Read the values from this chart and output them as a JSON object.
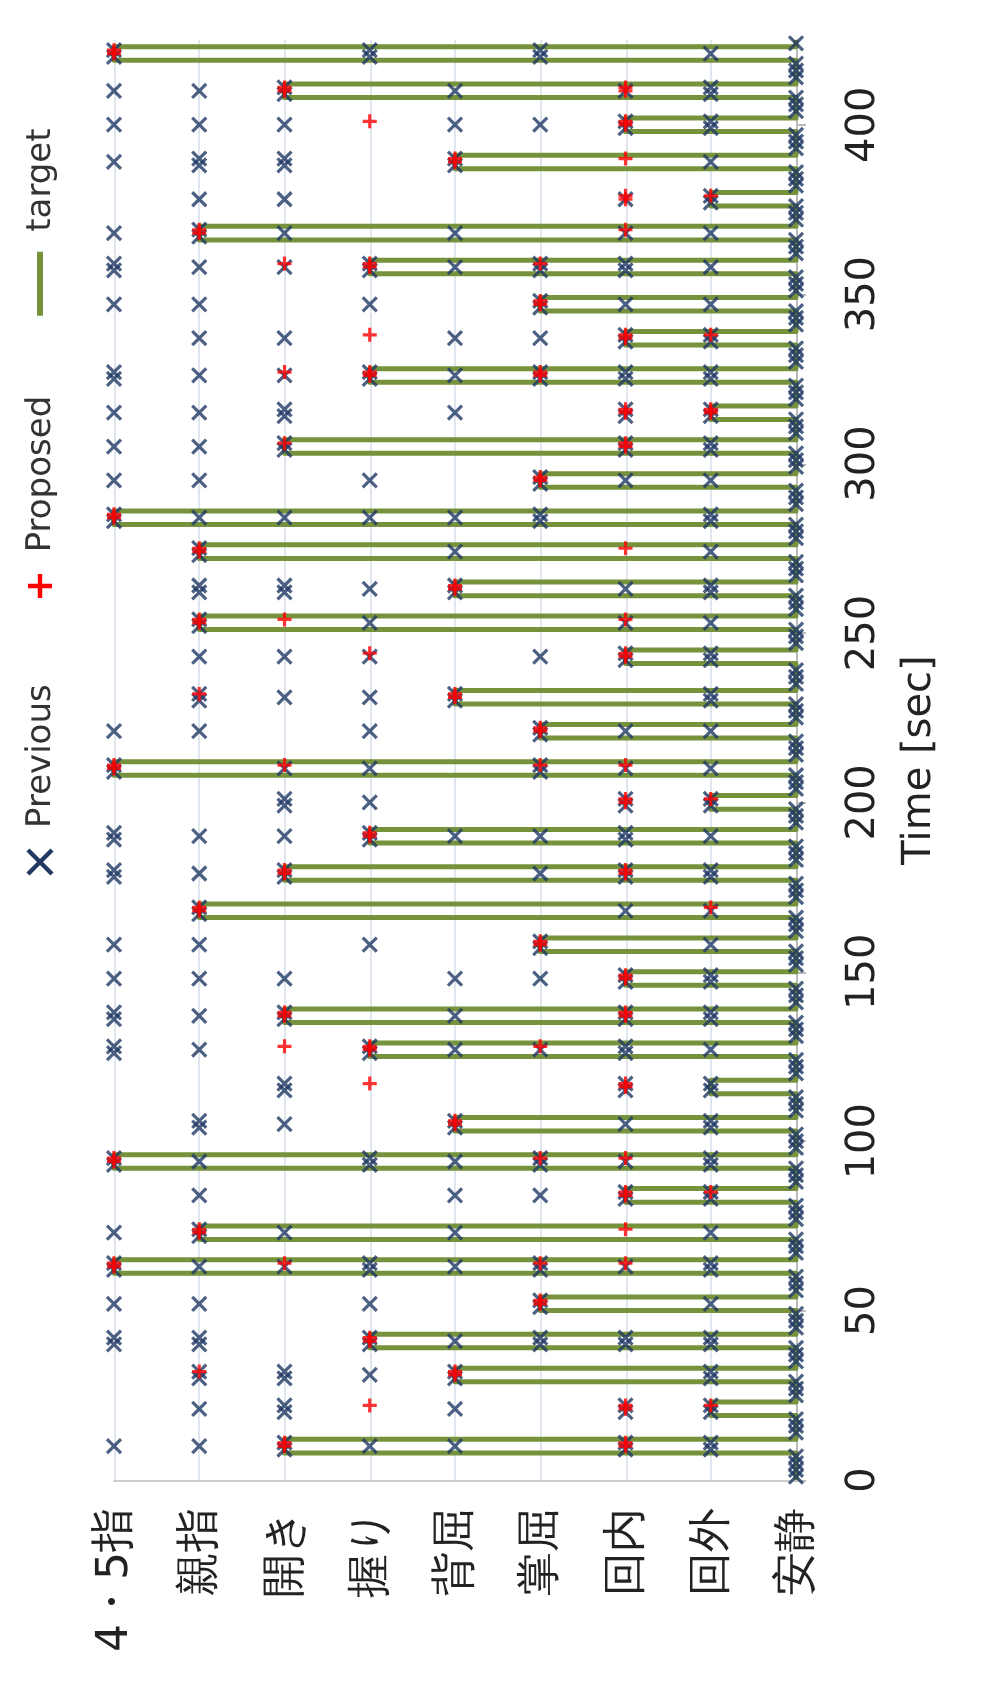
{
  "chart_data": {
    "type": "scatter",
    "ylabel": "Time [sec]",
    "categories": [
      "4・5指",
      "親指",
      "開き",
      "握り",
      "背屈",
      "掌屈",
      "回内",
      "回外",
      "安静"
    ],
    "ylim": [
      0,
      425
    ],
    "yticks": [
      0,
      50,
      100,
      150,
      200,
      250,
      300,
      350,
      400
    ],
    "grid": "x",
    "legend": "left",
    "series": [
      {
        "name": "Previous",
        "marker": "cross",
        "color": "#1f3864",
        "values": [
          1,
          3,
          5,
          7,
          9,
          11,
          9,
          11,
          9,
          11,
          10,
          10,
          10,
          10,
          14,
          16,
          18,
          20,
          22,
          20,
          22,
          20,
          22,
          21,
          21,
          25,
          27,
          29,
          30,
          32,
          30,
          32,
          30,
          32,
          30,
          32,
          31,
          35,
          37,
          39,
          40,
          42,
          40,
          42,
          40,
          42,
          40,
          42,
          40,
          42,
          40,
          42,
          41,
          45,
          47,
          49,
          51,
          53,
          52,
          52,
          52,
          52,
          56,
          58,
          60,
          62,
          64,
          62,
          64,
          62,
          64,
          62,
          64,
          63,
          63,
          63,
          63,
          67,
          69,
          71,
          72,
          74,
          73,
          73,
          73,
          73,
          77,
          79,
          81,
          83,
          85,
          83,
          85,
          84,
          84,
          84,
          88,
          90,
          92,
          93,
          95,
          93,
          95,
          93,
          95,
          93,
          95,
          94,
          94,
          94,
          98,
          100,
          102,
          104,
          106,
          104,
          106,
          104,
          106,
          105,
          105,
          109,
          111,
          113,
          115,
          117,
          115,
          117,
          115,
          117,
          120,
          122,
          124,
          126,
          128,
          126,
          128,
          126,
          128,
          127,
          127,
          127,
          127,
          131,
          133,
          135,
          136,
          138,
          136,
          138,
          136,
          138,
          136,
          138,
          137,
          137,
          141,
          143,
          145,
          147,
          149,
          147,
          149,
          148,
          148,
          148,
          148,
          148,
          152,
          154,
          156,
          157,
          159,
          158,
          158,
          158,
          158,
          162,
          164,
          166,
          167,
          169,
          168,
          168,
          172,
          174,
          176,
          178,
          180,
          178,
          180,
          178,
          180,
          178,
          180,
          179,
          179,
          183,
          185,
          187,
          189,
          191,
          189,
          191,
          189,
          191,
          190,
          190,
          190,
          190,
          190,
          194,
          196,
          198,
          199,
          201,
          199,
          201,
          199,
          201,
          200,
          204,
          206,
          208,
          209,
          211,
          209,
          211,
          210,
          210,
          210,
          210,
          214,
          216,
          218,
          220,
          222,
          221,
          221,
          221,
          221,
          221,
          225,
          227,
          229,
          230,
          232,
          230,
          232,
          230,
          232,
          231,
          231,
          235,
          237,
          239,
          242,
          244,
          242,
          244,
          243,
          243,
          243,
          243,
          247,
          249,
          251,
          252,
          254,
          253,
          253,
          253,
          257,
          259,
          261,
          262,
          264,
          262,
          264,
          262,
          264,
          262,
          264,
          263,
          263,
          267,
          269,
          271,
          273,
          275,
          274,
          274,
          278,
          280,
          282,
          283,
          285,
          283,
          285,
          283,
          285,
          284,
          284,
          284,
          284,
          288,
          290,
          292,
          294,
          296,
          295,
          295,
          295,
          295,
          295,
          299,
          301,
          303,
          304,
          306,
          304,
          306,
          304,
          306,
          305,
          305,
          309,
          311,
          313,
          314,
          316,
          314,
          316,
          314,
          316,
          315,
          315,
          315,
          319,
          321,
          323,
          325,
          327,
          325,
          327,
          325,
          327,
          325,
          327,
          325,
          327,
          326,
          326,
          326,
          330,
          332,
          334,
          336,
          338,
          336,
          338,
          337,
          337,
          337,
          337,
          341,
          343,
          345,
          346,
          348,
          347,
          347,
          347,
          347,
          347,
          351,
          353,
          355,
          357,
          359,
          357,
          359,
          357,
          359,
          357,
          359,
          358,
          358,
          358,
          358,
          362,
          364,
          366,
          367,
          369,
          368,
          368,
          368,
          368,
          368,
          372,
          374,
          376,
          377,
          379,
          378,
          378,
          378,
          382,
          384,
          386,
          388,
          390,
          388,
          390,
          388,
          390,
          389,
          389,
          393,
          395,
          397,
          399,
          401,
          399,
          401,
          400,
          400,
          400,
          400,
          400,
          404,
          406,
          408,
          409,
          411,
          409,
          411,
          410,
          410,
          410,
          410,
          414,
          416,
          418,
          420,
          422,
          420,
          422,
          420,
          422,
          421,
          424
        ],
        "x": [
          "安静",
          "安静",
          "安静",
          "安静",
          "開き",
          "開き",
          "回内",
          "回内",
          "回外",
          "回外",
          "4・5指",
          "親指",
          "握り",
          "背屈",
          "安静",
          "安静",
          "安静",
          "開き",
          "開き",
          "回内",
          "回内",
          "回外",
          "回外",
          "親指",
          "背屈",
          "安静",
          "安静",
          "安静",
          "親指",
          "親指",
          "開き",
          "開き",
          "背屈",
          "背屈",
          "回外",
          "回外",
          "握り",
          "安静",
          "安静",
          "安静",
          "4・5指",
          "4・5指",
          "親指",
          "親指",
          "握り",
          "握り",
          "掌屈",
          "掌屈",
          "回内",
          "回内",
          "回外",
          "回外",
          "背屈",
          "安静",
          "安静",
          "安静",
          "掌屈",
          "掌屈",
          "4・5指",
          "親指",
          "握り",
          "回外",
          "安静",
          "安静",
          "安静",
          "4・5指",
          "4・5指",
          "握り",
          "握り",
          "掌屈",
          "掌屈",
          "回外",
          "回外",
          "親指",
          "開き",
          "背屈",
          "回内",
          "安静",
          "安静",
          "安静",
          "親指",
          "親指",
          "4・5指",
          "開き",
          "背屈",
          "回外",
          "安静",
          "安静",
          "安静",
          "回内",
          "回内",
          "回外",
          "回外",
          "親指",
          "背屈",
          "掌屈",
          "安静",
          "安静",
          "安静",
          "4・5指",
          "4・5指",
          "握り",
          "握り",
          "掌屈",
          "掌屈",
          "回外",
          "回外",
          "親指",
          "背屈",
          "回内",
          "安静",
          "安静",
          "安静",
          "親指",
          "親指",
          "背屈",
          "背屈",
          "回外",
          "回外",
          "開き",
          "回内",
          "安静",
          "安静",
          "安静",
          "開き",
          "開き",
          "回内",
          "回内",
          "回外",
          "回外",
          "安静",
          "安静",
          "安静",
          "4・5指",
          "4・5指",
          "握り",
          "握り",
          "回内",
          "回内",
          "親指",
          "背屈",
          "掌屈",
          "回外",
          "安静",
          "安静",
          "安静",
          "4・5指",
          "4・5指",
          "開き",
          "開き",
          "回内",
          "回内",
          "回外",
          "回外",
          "親指",
          "背屈",
          "安静",
          "安静",
          "安静",
          "回内",
          "回内",
          "回外",
          "回外",
          "4・5指",
          "親指",
          "開き",
          "背屈",
          "掌屈",
          "安静",
          "安静",
          "安静",
          "掌屈",
          "掌屈",
          "4・5指",
          "親指",
          "握り",
          "回外",
          "安静",
          "安静",
          "安静",
          "親指",
          "親指",
          "回内",
          "回外",
          "安静",
          "安静",
          "安静",
          "4・5指",
          "4・5指",
          "開き",
          "開き",
          "回内",
          "回内",
          "回外",
          "回外",
          "親指",
          "掌屈",
          "安静",
          "安静",
          "安静",
          "4・5指",
          "4・5指",
          "握り",
          "握り",
          "回内",
          "回内",
          "親指",
          "開き",
          "背屈",
          "掌屈",
          "回外",
          "安静",
          "安静",
          "安静",
          "開き",
          "開き",
          "回内",
          "回内",
          "回外",
          "回外",
          "握り",
          "安静",
          "安静",
          "安静",
          "4・5指",
          "4・5指",
          "掌屈",
          "掌屈",
          "開き",
          "握り",
          "回内",
          "回外",
          "安静",
          "安静",
          "安静",
          "掌屈",
          "掌屈",
          "4・5指",
          "親指",
          "握り",
          "回内",
          "回外",
          "安静",
          "安静",
          "安静",
          "親指",
          "親指",
          "背屈",
          "背屈",
          "回外",
          "回外",
          "開き",
          "握り",
          "安静",
          "安静",
          "安静",
          "回内",
          "回内",
          "回外",
          "回外",
          "親指",
          "開き",
          "握り",
          "掌屈",
          "安静",
          "安静",
          "安静",
          "親指",
          "親指",
          "握り",
          "回内",
          "回外",
          "安静",
          "安静",
          "安静",
          "親指",
          "親指",
          "開き",
          "開き",
          "背屈",
          "背屈",
          "回外",
          "回外",
          "握り",
          "回内",
          "安静",
          "安静",
          "安静",
          "親指",
          "親指",
          "背屈",
          "回外",
          "安静",
          "安静",
          "安静",
          "4・5指",
          "4・5指",
          "掌屈",
          "掌屈",
          "回外",
          "回外",
          "親指",
          "開き",
          "握り",
          "背屈",
          "安静",
          "安静",
          "安静",
          "掌屈",
          "掌屈",
          "4・5指",
          "親指",
          "握り",
          "回内",
          "回外",
          "安静",
          "安静",
          "安静",
          "開き",
          "開き",
          "回内",
          "回内",
          "回外",
          "回外",
          "4・5指",
          "親指",
          "安静",
          "安静",
          "安静",
          "開き",
          "開き",
          "回内",
          "回内",
          "回外",
          "回外",
          "4・5指",
          "親指",
          "背屈",
          "安静",
          "安静",
          "安静",
          "4・5指",
          "4・5指",
          "握り",
          "握り",
          "掌屈",
          "掌屈",
          "回内",
          "回内",
          "回外",
          "回外",
          "親指",
          "開き",
          "背屈",
          "安静",
          "安静",
          "安静",
          "回内",
          "回内",
          "回外",
          "回外",
          "親指",
          "開き",
          "背屈",
          "掌屈",
          "安静",
          "安静",
          "安静",
          "掌屈",
          "掌屈",
          "4・5指",
          "親指",
          "握り",
          "回内",
          "回外",
          "安静",
          "安静",
          "安静",
          "4・5指",
          "4・5指",
          "握り",
          "握り",
          "掌屈",
          "掌屈",
          "回内",
          "回内",
          "親指",
          "開き",
          "背屈",
          "回外",
          "安静",
          "安静",
          "安静",
          "親指",
          "親指",
          "4・5指",
          "開き",
          "背屈",
          "回内",
          "回外",
          "安静",
          "安静",
          "安静",
          "回外",
          "回外",
          "親指",
          "開き",
          "回内",
          "安静",
          "安静",
          "安静",
          "親指",
          "親指",
          "開き",
          "開き",
          "背屈",
          "背屈",
          "4・5指",
          "回外",
          "安静",
          "安静",
          "安静",
          "回内",
          "回内",
          "回外",
          "回外",
          "4・5指",
          "親指",
          "開き",
          "背屈",
          "掌屈",
          "安静",
          "安静",
          "安静",
          "開き",
          "開き",
          "回外",
          "回外",
          "4・5指",
          "親指",
          "背屈",
          "回内",
          "安静",
          "安静",
          "安静",
          "4・5指",
          "4・5指",
          "握り",
          "握り",
          "掌屈",
          "掌屈",
          "回外",
          "安静"
        ]
      },
      {
        "name": "Proposed",
        "marker": "plus",
        "color": "#ff0000",
        "values": [
          10,
          11,
          10,
          11,
          22,
          21,
          22,
          22,
          32,
          31,
          32,
          41,
          42,
          52,
          53,
          63,
          64,
          64,
          64,
          64,
          73,
          74,
          74,
          84,
          85,
          85,
          94,
          95,
          95,
          95,
          105,
          106,
          117,
          116,
          117,
          128,
          127,
          128,
          128,
          137,
          138,
          137,
          138,
          148,
          149,
          158,
          159,
          168,
          169,
          169,
          179,
          180,
          179,
          180,
          190,
          191,
          200,
          201,
          201,
          210,
          211,
          211,
          211,
          211,
          221,
          222,
          232,
          231,
          232,
          244,
          243,
          244,
          253,
          254,
          254,
          254,
          263,
          264,
          274,
          275,
          275,
          284,
          285,
          295,
          296,
          306,
          305,
          306,
          315,
          316,
          315,
          316,
          327,
          326,
          327,
          326,
          327,
          338,
          337,
          338,
          338,
          347,
          348,
          359,
          358,
          359,
          359,
          368,
          369,
          369,
          378,
          379,
          379,
          389,
          390,
          390,
          401,
          400,
          401,
          410,
          411,
          410,
          411,
          421,
          422
        ],
        "x": [
          "開き",
          "開き",
          "回内",
          "回内",
          "握り",
          "回内",
          "回内",
          "回外",
          "親指",
          "背屈",
          "背屈",
          "握り",
          "握り",
          "掌屈",
          "掌屈",
          "4・5指",
          "4・5指",
          "開き",
          "掌屈",
          "回内",
          "親指",
          "親指",
          "回内",
          "回内",
          "回内",
          "回外",
          "4・5指",
          "4・5指",
          "掌屈",
          "回内",
          "背屈",
          "背屈",
          "握り",
          "回内",
          "回内",
          "開き",
          "握り",
          "握り",
          "掌屈",
          "開き",
          "開き",
          "回内",
          "回内",
          "回内",
          "回内",
          "掌屈",
          "掌屈",
          "親指",
          "親指",
          "回外",
          "開き",
          "開き",
          "回内",
          "回内",
          "握り",
          "握り",
          "回内",
          "回内",
          "回外",
          "4・5指",
          "4・5指",
          "開き",
          "掌屈",
          "回内",
          "掌屈",
          "掌屈",
          "親指",
          "背屈",
          "背屈",
          "握り",
          "回内",
          "回内",
          "親指",
          "親指",
          "開き",
          "回内",
          "背屈",
          "背屈",
          "親指",
          "親指",
          "回内",
          "4・5指",
          "4・5指",
          "掌屈",
          "掌屈",
          "開き",
          "回内",
          "回内",
          "回内",
          "回内",
          "回外",
          "回外",
          "開き",
          "握り",
          "握り",
          "掌屈",
          "掌屈",
          "握り",
          "回内",
          "回内",
          "回外",
          "掌屈",
          "掌屈",
          "開き",
          "握り",
          "握り",
          "掌屈",
          "親指",
          "親指",
          "回内",
          "回内",
          "回内",
          "回外",
          "背屈",
          "背屈",
          "回内",
          "握り",
          "回内",
          "回内",
          "開き",
          "開き",
          "回内",
          "回内",
          "4・5指",
          "4・5指"
        ]
      },
      {
        "name": "target",
        "type": "line",
        "marker": "none",
        "color": "#76923c",
        "values": [
          0,
          8,
          8,
          12,
          12,
          19,
          19,
          23,
          23,
          29,
          29,
          33,
          33,
          39,
          39,
          43,
          43,
          50,
          50,
          54,
          54,
          61,
          61,
          65,
          65,
          71,
          71,
          75,
          75,
          82,
          82,
          86,
          86,
          92,
          92,
          96,
          96,
          103,
          103,
          107,
          107,
          114,
          114,
          118,
          118,
          125,
          125,
          129,
          129,
          135,
          135,
          139,
          139,
          146,
          146,
          150,
          150,
          156,
          156,
          160,
          160,
          166,
          166,
          170,
          170,
          177,
          177,
          181,
          181,
          188,
          188,
          192,
          192,
          198,
          198,
          202,
          202,
          208,
          208,
          212,
          212,
          219,
          219,
          223,
          223,
          229,
          229,
          233,
          233,
          241,
          241,
          245,
          245,
          251,
          251,
          255,
          255,
          261,
          261,
          265,
          265,
          272,
          272,
          276,
          276,
          282,
          282,
          286,
          286,
          293,
          293,
          297,
          297,
          303,
          303,
          307,
          307,
          313,
          313,
          317,
          317,
          324,
          324,
          328,
          328,
          335,
          335,
          339,
          339,
          345,
          345,
          349,
          349,
          356,
          356,
          360,
          360,
          366,
          366,
          370,
          370,
          376,
          376,
          380,
          380,
          387,
          387,
          391,
          391,
          398,
          398,
          402,
          402,
          408,
          408,
          412,
          412,
          419,
          419,
          423,
          423,
          425
        ],
        "x": [
          "安静",
          "安静",
          "開き",
          "開き",
          "安静",
          "安静",
          "回外",
          "回外",
          "安静",
          "安静",
          "背屈",
          "背屈",
          "安静",
          "安静",
          "握り",
          "握り",
          "安静",
          "安静",
          "掌屈",
          "掌屈",
          "安静",
          "安静",
          "4・5指",
          "4・5指",
          "安静",
          "安静",
          "親指",
          "親指",
          "安静",
          "安静",
          "回内",
          "回内",
          "安静",
          "安静",
          "4・5指",
          "4・5指",
          "安静",
          "安静",
          "背屈",
          "背屈",
          "安静",
          "安静",
          "回外",
          "回外",
          "安静",
          "安静",
          "握り",
          "握り",
          "安静",
          "安静",
          "開き",
          "開き",
          "安静",
          "安静",
          "回内",
          "回内",
          "安静",
          "安静",
          "掌屈",
          "掌屈",
          "安静",
          "安静",
          "親指",
          "親指",
          "安静",
          "安静",
          "開き",
          "開き",
          "安静",
          "安静",
          "握り",
          "握り",
          "安静",
          "安静",
          "回外",
          "回外",
          "安静",
          "安静",
          "4・5指",
          "4・5指",
          "安静",
          "安静",
          "掌屈",
          "掌屈",
          "安静",
          "安静",
          "背屈",
          "背屈",
          "安静",
          "安静",
          "回内",
          "回内",
          "安静",
          "安静",
          "親指",
          "親指",
          "安静",
          "安静",
          "背屈",
          "背屈",
          "安静",
          "安静",
          "親指",
          "親指",
          "安静",
          "安静",
          "4・5指",
          "4・5指",
          "安静",
          "安静",
          "掌屈",
          "掌屈",
          "安静",
          "安静",
          "開き",
          "開き",
          "安静",
          "安静",
          "回外",
          "回外",
          "安静",
          "安静",
          "握り",
          "握り",
          "安静",
          "安静",
          "回内",
          "回内",
          "安静",
          "安静",
          "掌屈",
          "掌屈",
          "安静",
          "安静",
          "握り",
          "握り",
          "安静",
          "安静",
          "親指",
          "親指",
          "安静",
          "安静",
          "回外",
          "回外",
          "安静",
          "安静",
          "背屈",
          "背屈",
          "安静",
          "安静",
          "回内",
          "回内",
          "安静",
          "安静",
          "開き",
          "開き",
          "安静",
          "安静",
          "4・5指",
          "4・5指",
          "安静",
          "安静"
        ]
      }
    ]
  }
}
